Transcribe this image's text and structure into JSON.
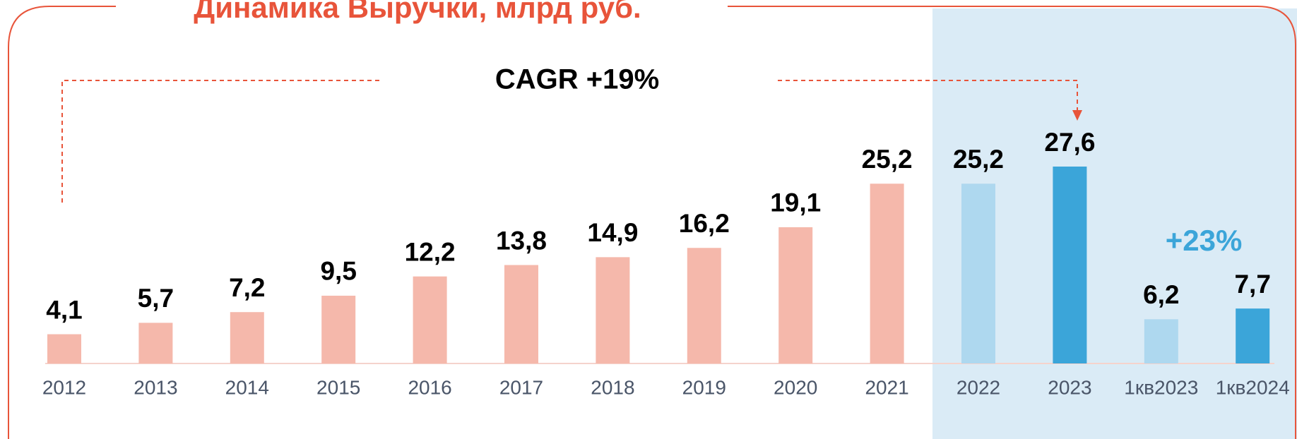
{
  "chart_data": {
    "type": "bar",
    "title": "Динамика Выручки, млрд руб.",
    "annotations": [
      "CAGR +19%",
      "+23%"
    ],
    "categories": [
      "2012",
      "2013",
      "2014",
      "2015",
      "2016",
      "2017",
      "2018",
      "2019",
      "2020",
      "2021",
      "2022",
      "2023",
      "1кв2023",
      "1кв2024"
    ],
    "values": [
      4.1,
      5.7,
      7.2,
      9.5,
      12.2,
      13.8,
      14.9,
      16.2,
      19.1,
      25.2,
      25.2,
      27.6,
      6.2,
      7.7
    ],
    "value_labels": [
      "4,1",
      "5,7",
      "7,2",
      "9,5",
      "12,2",
      "13,8",
      "14,9",
      "16,2",
      "19,1",
      "25,2",
      "25,2",
      "27,6",
      "6,2",
      "7,7"
    ],
    "colors": [
      "#f5b8ab",
      "#f5b8ab",
      "#f5b8ab",
      "#f5b8ab",
      "#f5b8ab",
      "#f5b8ab",
      "#f5b8ab",
      "#f5b8ab",
      "#f5b8ab",
      "#f5b8ab",
      "#aed8ef",
      "#3ba5d9",
      "#aed8ef",
      "#3ba5d9"
    ]
  }
}
